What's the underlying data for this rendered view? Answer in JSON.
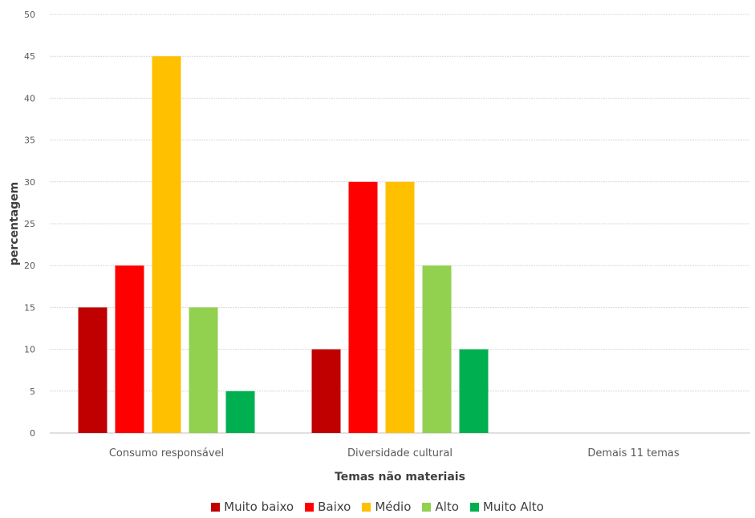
{
  "chart_data": {
    "type": "bar",
    "title": "",
    "xlabel": "Temas não materiais",
    "ylabel": "percentagem",
    "ylim": [
      0,
      50
    ],
    "yticks": [
      0,
      5,
      10,
      15,
      20,
      25,
      30,
      35,
      40,
      45,
      50
    ],
    "grid": true,
    "legend_position": "bottom",
    "categories": [
      "Consumo responsável",
      "Diversidade cultural",
      "Demais 11 temas"
    ],
    "series": [
      {
        "name": "Muito baixo",
        "color": "#C00000",
        "values": [
          15,
          10,
          0
        ]
      },
      {
        "name": "Baixo",
        "color": "#FF0000",
        "values": [
          20,
          30,
          0
        ]
      },
      {
        "name": "Médio",
        "color": "#FFC000",
        "values": [
          45,
          30,
          0
        ]
      },
      {
        "name": "Alto",
        "color": "#92D050",
        "values": [
          15,
          20,
          0
        ]
      },
      {
        "name": "Muito Alto",
        "color": "#00B050",
        "values": [
          5,
          10,
          0
        ]
      }
    ]
  }
}
